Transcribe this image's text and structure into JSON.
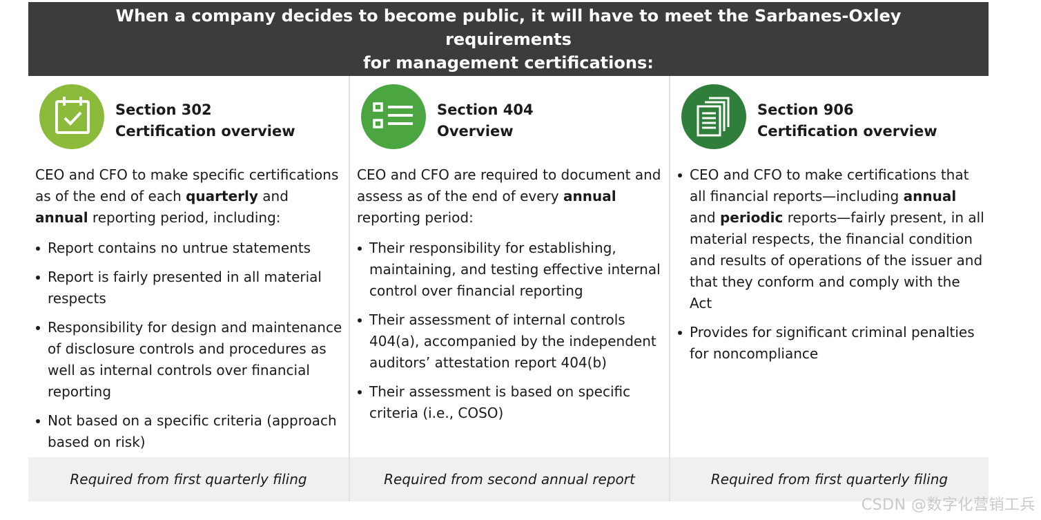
{
  "header": {
    "title_line1": "When a company decides to become public, it will have to meet the Sarbanes-Oxley requirements",
    "title_line2": "for management certifications:"
  },
  "columns": [
    {
      "icon": "calendar-check-icon",
      "color": "#8cba3b",
      "title_line1": "Section 302",
      "title_line2": "Certification overview",
      "intro": {
        "t1": "CEO and CFO to make specific certifications as of the end of each ",
        "b1": "quarterly",
        "t2": " and ",
        "b2": "annual",
        "t3": " reporting period, including:"
      },
      "bullets": [
        "Report contains no untrue statements",
        "Report is fairly presented in all material respects",
        "Responsibility for design and maintenance of disclosure controls and procedures as well as internal controls over financial reporting",
        "Not based on a specific criteria (approach based on risk)"
      ],
      "footer": "Required from first quarterly filing"
    },
    {
      "icon": "checklist-icon",
      "color": "#4ba642",
      "title_line1": "Section 404",
      "title_line2": "Overview",
      "intro": {
        "t1": "CEO and CFO are required to document and assess as of the end of every ",
        "b1": "annual",
        "t2": " reporting period:"
      },
      "bullets": [
        "Their responsibility for establishing, maintaining, and testing effective internal control over financial reporting",
        "Their assessment of internal controls 404(a), accompanied by the independent auditors’ attestation report 404(b)",
        "Their assessment is based on specific criteria (i.e., COSO)"
      ],
      "footer": "Required from second annual report"
    },
    {
      "icon": "documents-icon",
      "color": "#2f7e3a",
      "title_line1": "Section 906",
      "title_line2": "Certification overview",
      "bullet1": {
        "t1": "CEO and CFO to make certifications that all financial reports—including ",
        "b1": "annual",
        "t2": " and ",
        "b2": "periodic",
        "t3": " reports—fairly present, in all material respects, the financial condition and results of operations of the issuer and that they conform and comply with the Act"
      },
      "bullets": [
        "Provides for significant criminal penalties for noncompliance"
      ],
      "footer": "Required from first quarterly filing"
    }
  ],
  "watermark": "CSDN @数字化营销工兵"
}
